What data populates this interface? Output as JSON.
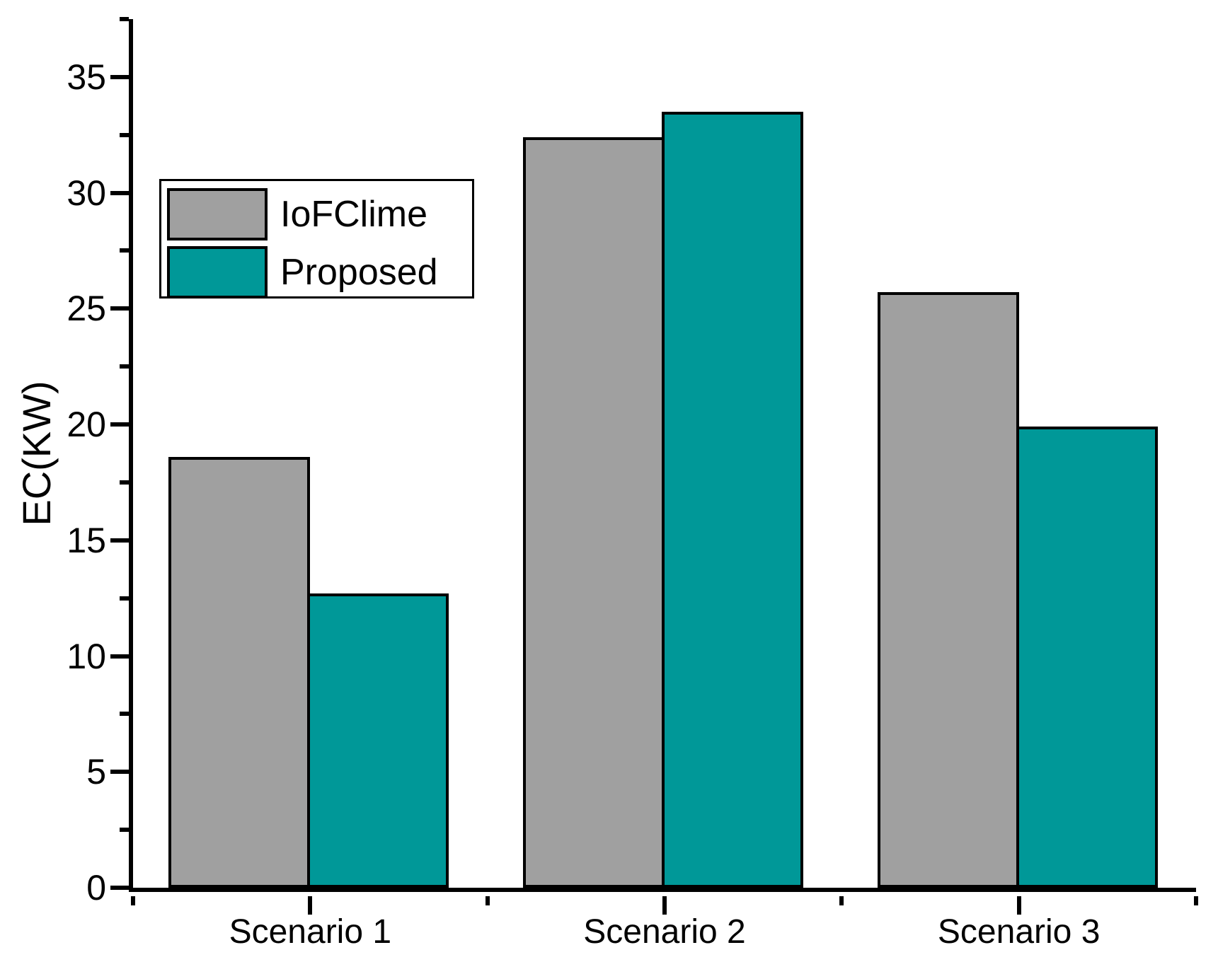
{
  "figure": {
    "background": "#ffffff",
    "text_color": "#000000"
  },
  "chart_data": {
    "type": "bar",
    "title": "",
    "xlabel": "",
    "ylabel": "EC(KW)",
    "categories": [
      "Scenario 1",
      "Scenario 2",
      "Scenario 3"
    ],
    "series": [
      {
        "name": "IoFClime",
        "color": "#a0a0a0",
        "values": [
          18.6,
          32.4,
          25.7
        ]
      },
      {
        "name": "Proposed",
        "color": "#009898",
        "values": [
          12.7,
          33.5,
          19.9
        ]
      }
    ],
    "ylim": [
      0,
      37.5
    ],
    "yticks_major": [
      0,
      5,
      10,
      15,
      20,
      25,
      30,
      35
    ],
    "yticks_minor": [
      2.5,
      7.5,
      12.5,
      17.5,
      22.5,
      27.5,
      32.5,
      37.5
    ],
    "axis_color": "#000000",
    "bar_edge_color": "#000000",
    "grid": false,
    "legend_position": "upper-left"
  }
}
